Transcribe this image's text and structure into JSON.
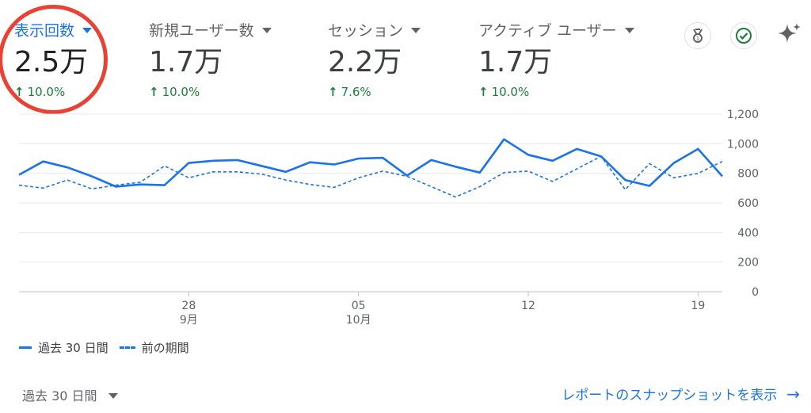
{
  "metrics": [
    {
      "label": "表示回数",
      "value": "2.5万",
      "change": "10.0%",
      "active": true
    },
    {
      "label": "新規ユーザー数",
      "value": "1.7万",
      "change": "10.0%",
      "active": false
    },
    {
      "label": "セッション",
      "value": "2.2万",
      "change": "7.6%",
      "active": false
    },
    {
      "label": "アクティブ ユーザー",
      "value": "1.7万",
      "change": "10.0%",
      "active": false
    }
  ],
  "toolbar": {
    "insights_icon": "medal-icon",
    "status_icon": "check-circle-icon",
    "ai_icon": "sparkle-icon"
  },
  "colors": {
    "accent": "#1a73e8",
    "positive": "#188038",
    "highlight": "#e94234"
  },
  "chart_data": {
    "type": "line",
    "x_ticks": [
      {
        "label": "28",
        "sublabel": "9月",
        "index": 7
      },
      {
        "label": "05",
        "sublabel": "10月",
        "index": 14
      },
      {
        "label": "12",
        "sublabel": "",
        "index": 21
      },
      {
        "label": "19",
        "sublabel": "",
        "index": 28
      }
    ],
    "y_ticks": [
      "0",
      "200",
      "400",
      "600",
      "800",
      "1,000",
      "1,200"
    ],
    "ylim": [
      0,
      1200
    ],
    "series": [
      {
        "name": "過去 30 日間",
        "style": "solid",
        "values": [
          790,
          880,
          840,
          780,
          710,
          725,
          720,
          870,
          885,
          890,
          850,
          810,
          875,
          860,
          900,
          905,
          785,
          890,
          845,
          805,
          1030,
          925,
          885,
          965,
          915,
          755,
          715,
          870,
          965,
          780
        ]
      },
      {
        "name": "前の期間",
        "style": "dashed",
        "values": [
          720,
          700,
          755,
          695,
          720,
          740,
          850,
          770,
          810,
          810,
          795,
          755,
          725,
          705,
          770,
          815,
          780,
          710,
          640,
          710,
          805,
          815,
          745,
          830,
          915,
          690,
          865,
          770,
          800,
          880
        ]
      }
    ]
  },
  "legend": {
    "current": "過去 30 日間",
    "previous": "前の期間"
  },
  "footer": {
    "range_label": "過去 30 日間",
    "report_link": "レポートのスナップショットを表示"
  }
}
